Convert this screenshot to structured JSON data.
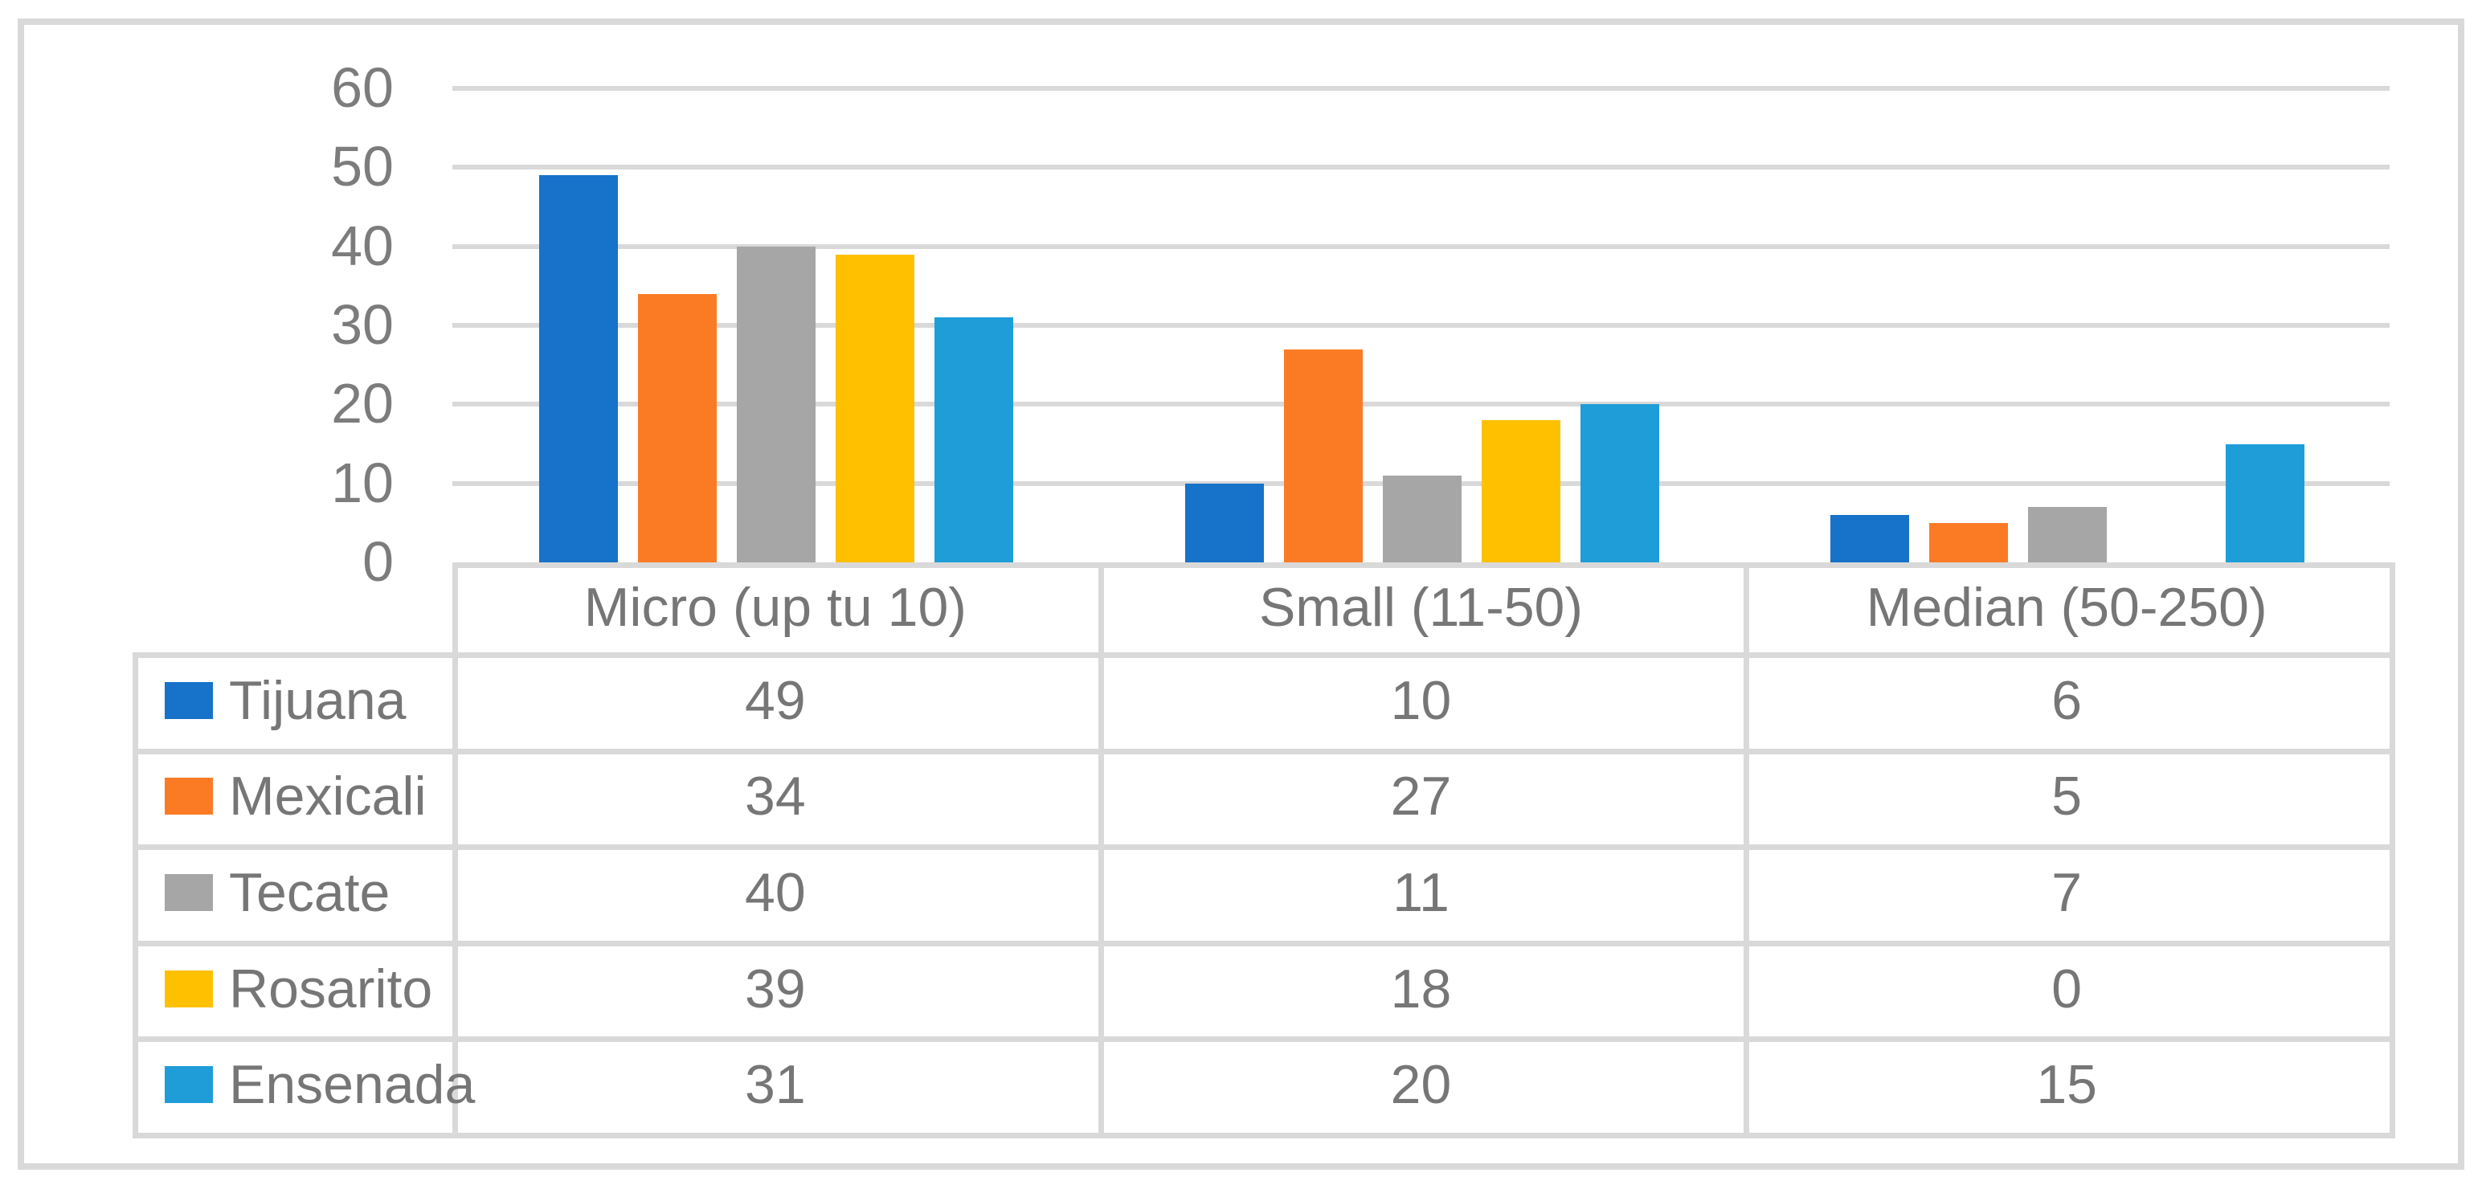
{
  "chart_data": {
    "type": "bar",
    "title": "",
    "categories": [
      "Micro (up tu 10)",
      "Small (11-50)",
      "Median (50-250)"
    ],
    "series": [
      {
        "name": "Tijuana",
        "color": "#1772C9",
        "values": [
          49,
          10,
          6
        ]
      },
      {
        "name": "Mexicali",
        "color": "#FB7B25",
        "values": [
          34,
          27,
          5
        ]
      },
      {
        "name": "Tecate",
        "color": "#A6A6A6",
        "values": [
          40,
          11,
          7
        ]
      },
      {
        "name": "Rosarito",
        "color": "#FFC000",
        "values": [
          39,
          18,
          0
        ]
      },
      {
        "name": "Ensenada",
        "color": "#1F9DD9",
        "values": [
          31,
          20,
          15
        ]
      }
    ],
    "y_axis": {
      "min": 0,
      "max": 60,
      "step": 10,
      "tick_labels": [
        "0",
        "10",
        "20",
        "30",
        "40",
        "50",
        "60"
      ]
    },
    "grid": true,
    "legend_position": "data-table-left-column",
    "layout_hints": {
      "has_data_table": true,
      "plot_background": "#ffffff",
      "gridline_color": "#D9D9D9",
      "table_border_color": "#D9D9D9",
      "figure_border_color": "#D9D9D9",
      "text_color": "#767676"
    }
  }
}
